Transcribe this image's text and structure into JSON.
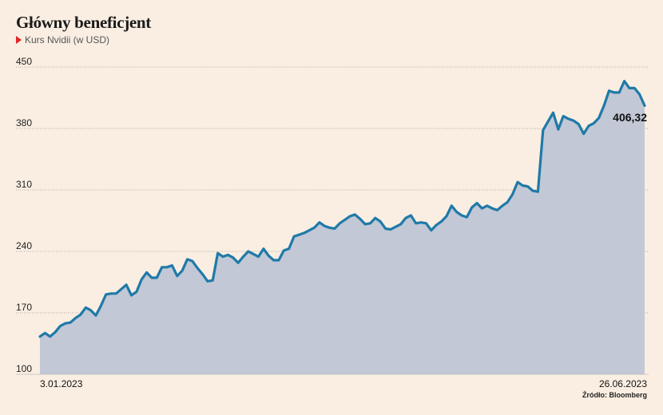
{
  "chart_data": {
    "type": "area",
    "title": "Główny beneficjent",
    "subtitle": "Kurs Nvidii (w USD)",
    "yticks": [
      100,
      170,
      240,
      310,
      380,
      450
    ],
    "ylim": [
      100,
      450
    ],
    "x_start_label": "3.01.2023",
    "x_end_label": "26.06.2023",
    "last_value_label": "406,32",
    "source": "Źródło: Bloomberg",
    "colors": {
      "line": "#1f7aa8",
      "fill": "#c2c8d6",
      "background": "#faeee2",
      "grid": "#999999",
      "marker": "#e0262a"
    },
    "series": [
      {
        "values": [
          143,
          147,
          143,
          148,
          155,
          158,
          159,
          164,
          168,
          176,
          173,
          167,
          178,
          191,
          192,
          192,
          197,
          202,
          190,
          194,
          208,
          216,
          210,
          210,
          222,
          222,
          224,
          212,
          218,
          231,
          229,
          221,
          214,
          206,
          207,
          238,
          234,
          236,
          233,
          227,
          234,
          240,
          237,
          234,
          243,
          235,
          230,
          230,
          241,
          243,
          257,
          259,
          261,
          264,
          267,
          273,
          269,
          267,
          266,
          272,
          276,
          280,
          282,
          277,
          271,
          272,
          278,
          274,
          266,
          265,
          268,
          271,
          278,
          281,
          272,
          273,
          272,
          264,
          270,
          274,
          280,
          292,
          285,
          281,
          279,
          290,
          295,
          289,
          292,
          289,
          287,
          292,
          296,
          305,
          319,
          315,
          314,
          309,
          308,
          378,
          388,
          398,
          379,
          394,
          391,
          389,
          385,
          374,
          383,
          386,
          392,
          406,
          423,
          421,
          421,
          434,
          426,
          426,
          419,
          406
        ]
      }
    ]
  }
}
